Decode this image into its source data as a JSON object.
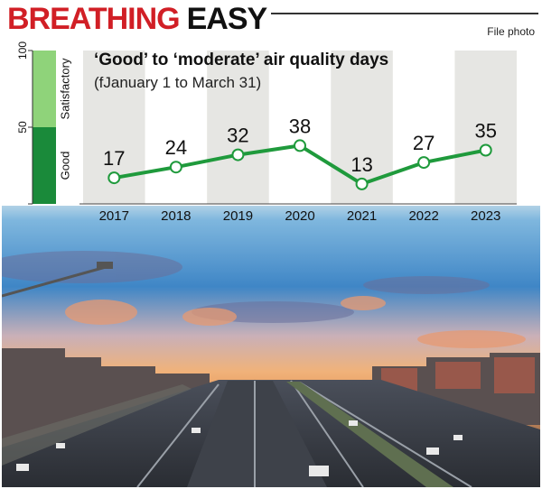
{
  "headline": {
    "part1": "BREATHING",
    "part2": "EASY"
  },
  "credit": "File photo",
  "chart_data": {
    "type": "line",
    "title": "‘Good’ to ‘moderate’ air quality days",
    "subtitle": "(fJanuary 1 to March 31)",
    "categories": [
      "2017",
      "2018",
      "2019",
      "2020",
      "2021",
      "2022",
      "2023"
    ],
    "series": [
      {
        "values": [
          17,
          24,
          32,
          38,
          13,
          27,
          35
        ]
      }
    ],
    "data_labels": [
      "17",
      "24",
      "32",
      "38",
      "13",
      "27",
      "35"
    ],
    "ylim": [
      0,
      100
    ],
    "scale_ticks": [
      "100",
      "50",
      "0"
    ],
    "bands": [
      {
        "label": "Good",
        "from": 0,
        "to": 50,
        "color": "#1a8a3a"
      },
      {
        "label": "Satisfactory",
        "from": 50,
        "to": 100,
        "color": "#8fd37a"
      }
    ],
    "line_color": "#1f9a3c",
    "column_shading": "alternate"
  }
}
